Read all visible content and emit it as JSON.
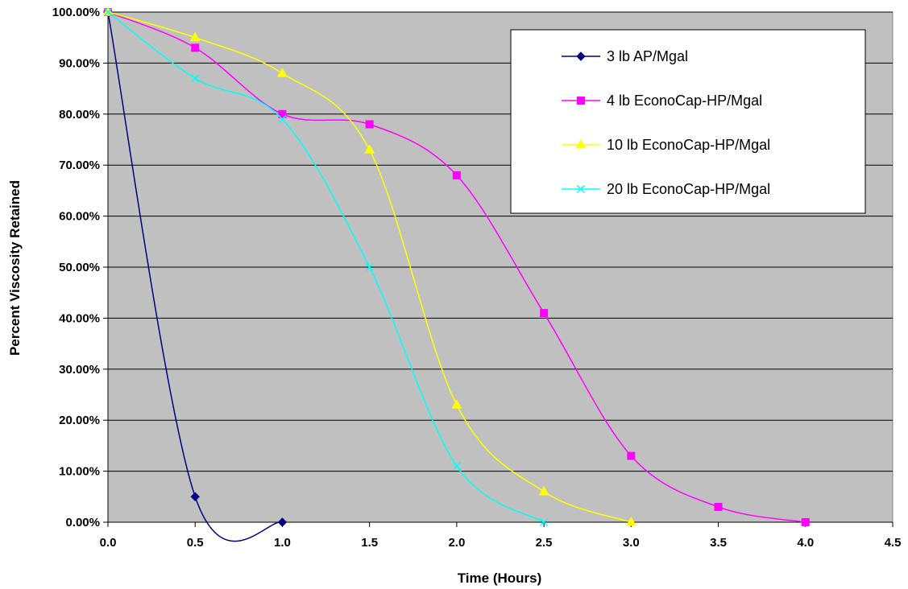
{
  "chart_data": {
    "type": "line",
    "title": "",
    "xlabel": "Time (Hours)",
    "ylabel": "Percent Viscosity Retained",
    "xlim": [
      0,
      4.5
    ],
    "ylim": [
      0,
      100
    ],
    "x_ticks": [
      "0.0",
      "0.5",
      "1.0",
      "1.5",
      "2.0",
      "2.5",
      "3.0",
      "3.5",
      "4.0",
      "4.5"
    ],
    "y_ticks": [
      "0.00%",
      "10.00%",
      "20.00%",
      "30.00%",
      "40.00%",
      "50.00%",
      "60.00%",
      "70.00%",
      "80.00%",
      "90.00%",
      "100.00%"
    ],
    "grid": "horizontal",
    "plot_background": "#c0c0c0",
    "legend_position": "top-right",
    "series": [
      {
        "name": "3 lb AP/Mgal",
        "color": "#000080",
        "marker": "diamond",
        "x": [
          0,
          0.5,
          1.0
        ],
        "y": [
          100,
          5,
          0
        ]
      },
      {
        "name": "4 lb EconoCap-HP/Mgal",
        "color": "#ff00ff",
        "marker": "square",
        "x": [
          0,
          0.5,
          1.0,
          1.5,
          2.0,
          2.5,
          3.0,
          3.5,
          4.0
        ],
        "y": [
          100,
          93,
          80,
          78,
          68,
          41,
          13,
          3,
          0
        ]
      },
      {
        "name": "10 lb EconoCap-HP/Mgal",
        "color": "#ffff00",
        "marker": "triangle",
        "x": [
          0,
          0.5,
          1.0,
          1.5,
          2.0,
          2.5,
          3.0
        ],
        "y": [
          100,
          95,
          88,
          73,
          23,
          6,
          0
        ]
      },
      {
        "name": "20 lb EconoCap-HP/Mgal",
        "color": "#00ffff",
        "marker": "x",
        "x": [
          0,
          0.5,
          1.0,
          1.5,
          2.0,
          2.5
        ],
        "y": [
          100,
          87,
          79,
          50,
          11,
          0
        ]
      }
    ]
  }
}
